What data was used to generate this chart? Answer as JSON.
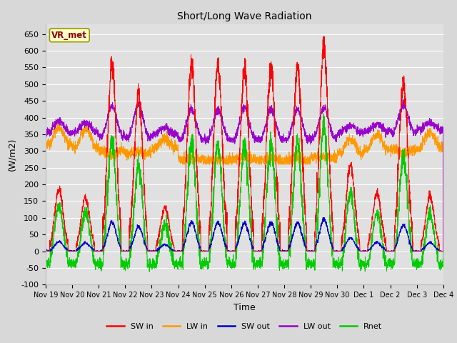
{
  "title": "Short/Long Wave Radiation",
  "xlabel": "Time",
  "ylabel": "(W/m2)",
  "ylim": [
    -100,
    680
  ],
  "yticks": [
    -100,
    -50,
    0,
    50,
    100,
    150,
    200,
    250,
    300,
    350,
    400,
    450,
    500,
    550,
    600,
    650
  ],
  "station_label": "VR_met",
  "fig_bg_color": "#d8d8d8",
  "plot_bg_color": "#e0e0e0",
  "grid_color": "#ffffff",
  "legend_items": [
    "SW in",
    "LW in",
    "SW out",
    "LW out",
    "Rnet"
  ],
  "legend_colors": [
    "#ff0000",
    "#ff9900",
    "#0000cc",
    "#9900cc",
    "#00cc00"
  ],
  "sw_in_color": "#ff0000",
  "lw_in_color": "#ff9900",
  "sw_out_color": "#0000cc",
  "lw_out_color": "#9900cc",
  "rnet_color": "#00cc00",
  "num_points": 3000,
  "num_days": 15,
  "sw_peaks": [
    185,
    160,
    565,
    465,
    130,
    565,
    555,
    545,
    550,
    550,
    615,
    255,
    175,
    510,
    165
  ],
  "lw_in_base_night": [
    320,
    310,
    300,
    295,
    310,
    275,
    270,
    275,
    270,
    270,
    280,
    295,
    305,
    305,
    310
  ],
  "lw_in_base_day": [
    370,
    365,
    290,
    300,
    335,
    280,
    275,
    285,
    280,
    280,
    285,
    335,
    350,
    295,
    355
  ],
  "lw_out_base_night": [
    355,
    355,
    345,
    340,
    350,
    335,
    335,
    335,
    335,
    335,
    340,
    355,
    360,
    355,
    365
  ],
  "lw_out_base_day": [
    390,
    385,
    355,
    360,
    370,
    345,
    345,
    350,
    345,
    345,
    350,
    375,
    380,
    360,
    385
  ]
}
